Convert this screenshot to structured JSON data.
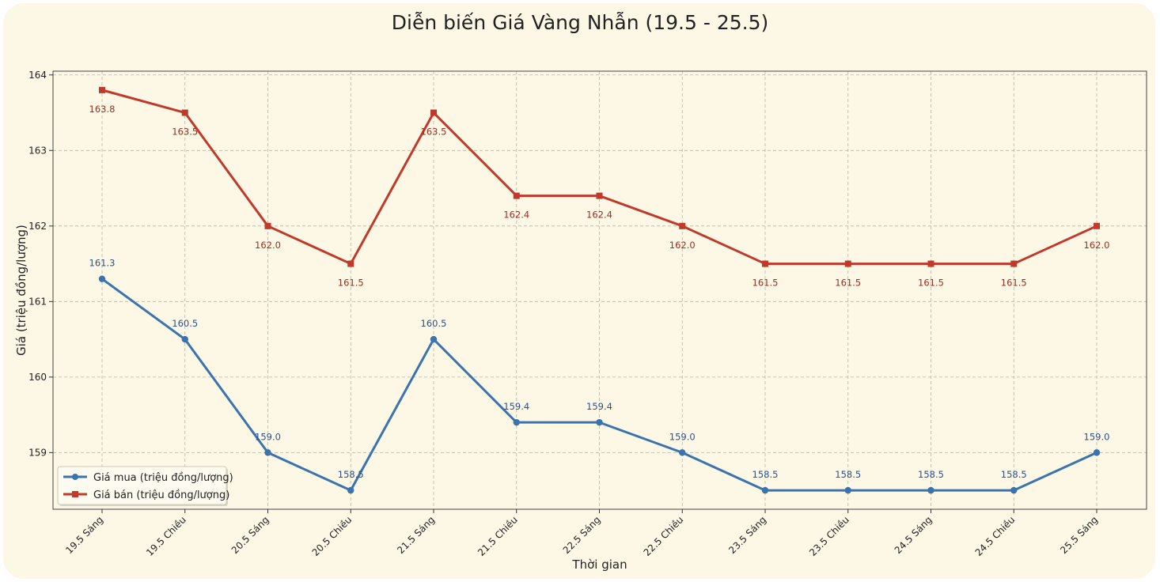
{
  "chart_data": {
    "type": "line",
    "title": "Diễn biến Giá Vàng Nhẫn (19.5 - 25.5)",
    "xlabel": "Thời gian",
    "ylabel": "Giá (triệu đồng/lượng)",
    "categories": [
      "19.5 Sáng",
      "19.5 Chiều",
      "20.5 Sáng",
      "20.5 Chiều",
      "21.5 Sáng",
      "21.5 Chiều",
      "22.5 Sáng",
      "22.5 Chiều",
      "23.5 Sáng",
      "23.5 Chiều",
      "24.5 Sáng",
      "24.5 Chiều",
      "25.5 Sáng"
    ],
    "ylim": [
      158.25,
      164.05
    ],
    "yticks": [
      159,
      160,
      161,
      162,
      163,
      164
    ],
    "grid": true,
    "legend_position": "lower-left",
    "series": [
      {
        "name": "Giá mua (triệu đồng/lượng)",
        "color": "#3a73ad",
        "marker": "circle",
        "label_position": "above",
        "values": [
          161.3,
          160.5,
          159.0,
          158.5,
          160.5,
          159.4,
          159.4,
          159.0,
          158.5,
          158.5,
          158.5,
          158.5,
          159.0
        ]
      },
      {
        "name": "Giá bán (triệu đồng/lượng)",
        "color": "#c0392b",
        "marker": "square",
        "label_position": "below",
        "values": [
          163.8,
          163.5,
          162.0,
          161.5,
          163.5,
          162.4,
          162.4,
          162.0,
          161.5,
          161.5,
          161.5,
          161.5,
          162.0
        ]
      }
    ]
  }
}
